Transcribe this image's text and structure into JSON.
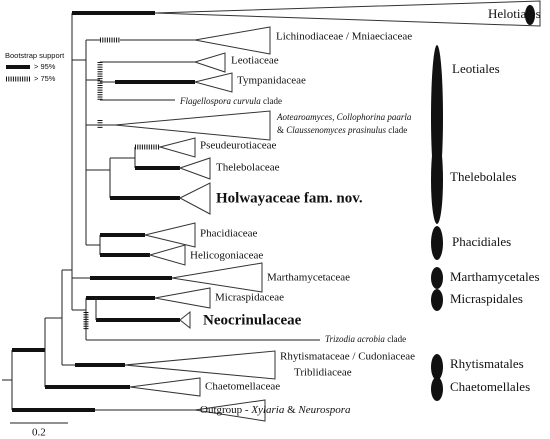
{
  "legend": {
    "title": "Bootstrap support",
    "high": "> 95%",
    "mid": "> 75%"
  },
  "scale_bar": "0.2",
  "clades": {
    "helotiales": "Helotiales",
    "lichinodiaceae": "Lichinodiaceae / Mniaeciaceae",
    "leotiaceae": "Leotiaceae",
    "tympanidaceae": "Tympanidaceae",
    "flagellospora": {
      "italic": "Flagellospora curvula",
      "plain": "clade"
    },
    "aotearoamyces": {
      "line1": {
        "italic": "Aotearoamyces, Collophorina paarla"
      },
      "line2": {
        "plain1": "&",
        "italic": "Claussenomyces prasinulus",
        "plain2": "clade"
      }
    },
    "pseudeurotiaceae": "Pseudeurotiaceae",
    "thelebolaceae": "Thelebolaceae",
    "holwayaceae": "Holwayaceae fam. nov.",
    "phacidiaceae": "Phacidiaceae",
    "helicogoniaceae": "Helicogoniaceae",
    "marthamycetaceae": "Marthamycetaceae",
    "micraspidaceae": "Micraspidaceae",
    "neocrinulaceae": "Neocrinulaceae",
    "trizodia": {
      "italic": "Trizodia acrobia",
      "plain": "clade"
    },
    "rhytismataceae": "Rhytismataceae / Cudoniaceae",
    "triblidiaceae": "Triblidiaceae",
    "chaetomellaceae": "Chaetomellaceae",
    "outgroup": {
      "plain": "Outgroup -",
      "italic1": "Xylaria",
      "amp": "&",
      "italic2": "Neurospora"
    }
  },
  "orders": [
    "Leotiales",
    "Thelebolales",
    "Phacidiales",
    "Marthamycetales",
    "Micraspidales",
    "Rhytismatales",
    "Chaetomellales"
  ]
}
